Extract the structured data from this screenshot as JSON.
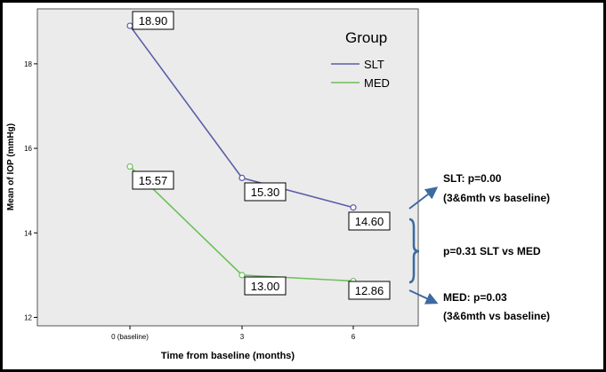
{
  "chart_data": {
    "type": "line",
    "title": "",
    "xlabel": "Time from baseline (months)",
    "ylabel": "Mean of IOP (mmHg)",
    "categories": [
      "0 (baseline)",
      "3",
      "6"
    ],
    "yticks": [
      12,
      14,
      16,
      18
    ],
    "ylim": [
      11.8,
      19.3
    ],
    "grid": false,
    "legend": {
      "title": "Group",
      "placement": "top-right",
      "entries": [
        "SLT",
        "MED"
      ]
    },
    "series": [
      {
        "name": "SLT",
        "color": "#5b5ea8",
        "values": [
          18.9,
          15.3,
          14.6
        ],
        "labels": [
          "18.90",
          "15.30",
          "14.60"
        ]
      },
      {
        "name": "MED",
        "color": "#6cc05a",
        "values": [
          15.57,
          13.0,
          12.86
        ],
        "labels": [
          "15.57",
          "13.00",
          "12.86"
        ]
      }
    ],
    "annotations": {
      "slt_line1": "SLT: p=0.00",
      "slt_line2": "(3&6mth vs baseline)",
      "compare": "p=0.31 SLT vs MED",
      "med_line1": "MED: p=0.03",
      "med_line2": "(3&6mth vs baseline)"
    },
    "colors": {
      "annotation_arrow": "#3d6aa0",
      "plot_bg": "#ebebeb"
    }
  }
}
